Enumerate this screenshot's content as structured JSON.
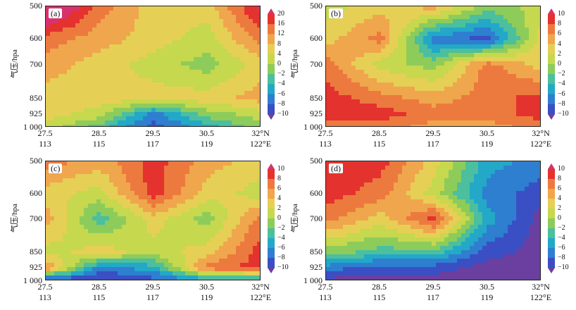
{
  "ylabel": "气压/hpa",
  "yticks": [
    "500",
    "600",
    "700",
    "850",
    "925",
    "1 000"
  ],
  "xticks_lat": [
    "27.5",
    "28.5",
    "29.5",
    "30.5",
    "32°N"
  ],
  "xticks_lon": [
    "113",
    "115",
    "117",
    "119",
    "122°E"
  ],
  "colorbar_ab": [
    "20",
    "16",
    "12",
    "8",
    "4",
    "0",
    "−2",
    "−4",
    "−6",
    "−8",
    "−10"
  ],
  "colorbar_std": [
    "10",
    "8",
    "6",
    "4",
    "2",
    "0",
    "−2",
    "−4",
    "−6",
    "−8",
    "−10"
  ],
  "colors": {
    "c_neg10": "#6b3fa0",
    "c_neg8": "#3a4fc4",
    "c_neg6": "#2e7fd0",
    "c_neg4": "#23a8c8",
    "c_neg2": "#4bbf9e",
    "c_0": "#8dcc5a",
    "c_2": "#c6d84e",
    "c_4": "#e6cf55",
    "c_6": "#f0a64c",
    "c_8": "#ec7a3e",
    "c_10": "#e4322e",
    "c_high": "#d8326e"
  },
  "chart_data": [
    {
      "type": "heatmap",
      "panel": "(a)",
      "x": [
        27.5,
        28.5,
        29.5,
        30.5,
        32.0
      ],
      "y": [
        500,
        600,
        700,
        850,
        925,
        1000
      ],
      "values": [
        [
          16,
          8,
          4,
          4,
          12
        ],
        [
          8,
          6,
          4,
          2,
          8
        ],
        [
          6,
          4,
          2,
          0,
          4
        ],
        [
          4,
          4,
          4,
          4,
          6
        ],
        [
          4,
          2,
          -6,
          0,
          2
        ],
        [
          2,
          -2,
          -8,
          -4,
          0
        ]
      ],
      "colorbar": [
        20,
        16,
        12,
        8,
        4,
        0,
        -2,
        -4,
        -6,
        -8,
        -10
      ]
    },
    {
      "type": "heatmap",
      "panel": "(b)",
      "x": [
        27.5,
        28.5,
        29.5,
        30.5,
        32.0
      ],
      "y": [
        500,
        600,
        700,
        850,
        925,
        1000
      ],
      "values": [
        [
          2,
          4,
          6,
          0,
          2
        ],
        [
          4,
          8,
          -6,
          -8,
          4
        ],
        [
          8,
          2,
          0,
          8,
          4
        ],
        [
          10,
          8,
          6,
          8,
          10
        ],
        [
          10,
          10,
          8,
          8,
          10
        ],
        [
          8,
          8,
          6,
          6,
          8
        ]
      ],
      "colorbar": [
        10,
        8,
        6,
        4,
        2,
        0,
        -2,
        -4,
        -6,
        -8,
        -10
      ]
    },
    {
      "type": "heatmap",
      "panel": "(c)",
      "x": [
        27.5,
        28.5,
        29.5,
        30.5,
        32.0
      ],
      "y": [
        500,
        600,
        700,
        850,
        925,
        1000
      ],
      "values": [
        [
          8,
          6,
          10,
          6,
          4
        ],
        [
          4,
          2,
          10,
          4,
          2
        ],
        [
          6,
          -2,
          4,
          0,
          8
        ],
        [
          2,
          4,
          2,
          4,
          10
        ],
        [
          8,
          -6,
          -4,
          8,
          10
        ],
        [
          -10,
          -10,
          -8,
          -6,
          -6
        ]
      ],
      "colorbar": [
        10,
        8,
        6,
        4,
        2,
        0,
        -2,
        -4,
        -6,
        -8,
        -10
      ]
    },
    {
      "type": "heatmap",
      "panel": "(d)",
      "x": [
        27.5,
        28.5,
        29.5,
        30.5,
        32.0
      ],
      "y": [
        500,
        600,
        700,
        850,
        925,
        1000
      ],
      "values": [
        [
          10,
          10,
          4,
          -4,
          -6
        ],
        [
          10,
          8,
          2,
          -6,
          -8
        ],
        [
          8,
          4,
          10,
          -4,
          -10
        ],
        [
          0,
          -2,
          -2,
          -8,
          -10
        ],
        [
          -6,
          -8,
          -8,
          -10,
          -10
        ],
        [
          -10,
          -10,
          -10,
          -10,
          -10
        ]
      ],
      "colorbar": [
        10,
        8,
        6,
        4,
        2,
        0,
        -2,
        -4,
        -6,
        -8,
        -10
      ]
    }
  ]
}
